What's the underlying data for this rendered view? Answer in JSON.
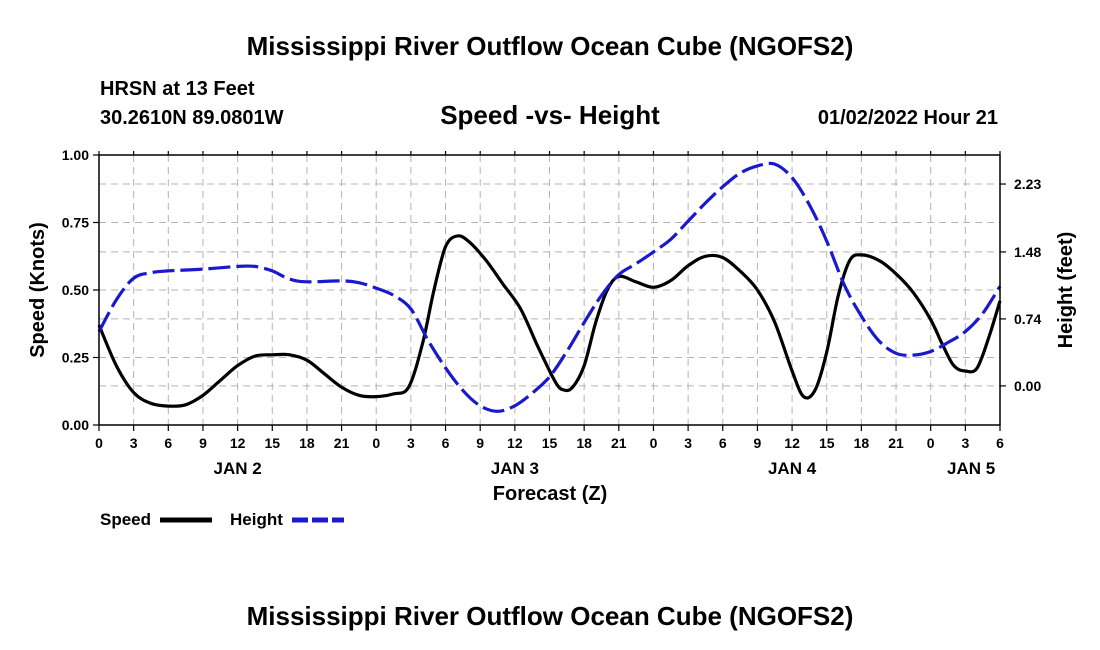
{
  "header": {
    "title": "Mississippi River Outflow Ocean Cube (NGOFS2)",
    "station": "HRSN at 13 Feet",
    "location": "30.2610N  89.0801W",
    "datetime": "01/02/2022 Hour 21",
    "footer_title": "Mississippi River Outflow Ocean Cube (NGOFS2)"
  },
  "colors": {
    "speed": "#000000",
    "height": "#1a1acc",
    "grid": "#b4b4b4"
  },
  "chart_data": {
    "type": "line",
    "title": "Speed -vs- Height",
    "xlabel": "Forecast (Z)",
    "ylabel": "Speed (Knots)",
    "y2label": "Height (feet)",
    "xlim": [
      0,
      78
    ],
    "ylim": [
      0,
      1.0
    ],
    "y2lim": [
      -0.4318,
      2.5507
    ],
    "x_ticks": [
      0,
      3,
      6,
      9,
      12,
      15,
      18,
      21,
      24,
      27,
      30,
      33,
      36,
      39,
      42,
      45,
      48,
      51,
      54,
      57,
      60,
      63,
      66,
      69,
      72,
      75,
      78
    ],
    "x_tick_labels": [
      "0",
      "3",
      "6",
      "9",
      "12",
      "15",
      "18",
      "21",
      "0",
      "3",
      "6",
      "9",
      "12",
      "15",
      "18",
      "21",
      "0",
      "3",
      "6",
      "9",
      "12",
      "15",
      "18",
      "21",
      "0",
      "3",
      "6"
    ],
    "y_ticks": [
      0,
      0.25,
      0.5,
      0.75,
      1.0
    ],
    "y_tick_labels": [
      "0.00",
      "0.25",
      "0.50",
      "0.75",
      "1.00"
    ],
    "y2_ticks": [
      0.0,
      0.74,
      1.48,
      2.23
    ],
    "y2_tick_labels": [
      "0.00",
      "0.74",
      "1.48",
      "2.23"
    ],
    "date_labels": [
      {
        "label": "JAN 2",
        "x": 12
      },
      {
        "label": "JAN 3",
        "x": 36
      },
      {
        "label": "JAN 4",
        "x": 60
      },
      {
        "label": "JAN 5",
        "x": 75.5
      }
    ],
    "grid": true,
    "legend": [
      {
        "name": "Speed",
        "style": "solid"
      },
      {
        "name": "Height",
        "style": "dashed"
      }
    ],
    "series": [
      {
        "name": "Speed",
        "axis": "left",
        "points": [
          [
            0,
            0.37
          ],
          [
            1.5,
            0.22
          ],
          [
            3,
            0.12
          ],
          [
            4.5,
            0.08
          ],
          [
            6,
            0.07
          ],
          [
            7.5,
            0.075
          ],
          [
            9,
            0.11
          ],
          [
            10.5,
            0.165
          ],
          [
            12,
            0.22
          ],
          [
            13.5,
            0.255
          ],
          [
            15,
            0.26
          ],
          [
            16.5,
            0.26
          ],
          [
            18,
            0.24
          ],
          [
            19.5,
            0.19
          ],
          [
            21,
            0.14
          ],
          [
            22.5,
            0.11
          ],
          [
            24,
            0.105
          ],
          [
            25.5,
            0.115
          ],
          [
            26.8,
            0.14
          ],
          [
            28,
            0.3
          ],
          [
            29,
            0.5
          ],
          [
            30,
            0.66
          ],
          [
            31,
            0.7
          ],
          [
            32,
            0.68
          ],
          [
            33.5,
            0.61
          ],
          [
            35,
            0.52
          ],
          [
            36.5,
            0.43
          ],
          [
            38,
            0.29
          ],
          [
            39.5,
            0.16
          ],
          [
            40.2,
            0.13
          ],
          [
            41,
            0.14
          ],
          [
            42,
            0.22
          ],
          [
            43,
            0.38
          ],
          [
            44,
            0.5
          ],
          [
            45,
            0.55
          ],
          [
            46.5,
            0.53
          ],
          [
            48,
            0.51
          ],
          [
            49.5,
            0.535
          ],
          [
            51,
            0.59
          ],
          [
            52.5,
            0.625
          ],
          [
            54,
            0.62
          ],
          [
            55.5,
            0.57
          ],
          [
            57,
            0.5
          ],
          [
            58.5,
            0.38
          ],
          [
            60,
            0.2
          ],
          [
            61,
            0.105
          ],
          [
            62,
            0.13
          ],
          [
            63,
            0.27
          ],
          [
            64,
            0.48
          ],
          [
            65,
            0.61
          ],
          [
            66,
            0.63
          ],
          [
            67.5,
            0.61
          ],
          [
            69,
            0.56
          ],
          [
            70.5,
            0.49
          ],
          [
            72,
            0.39
          ],
          [
            73,
            0.3
          ],
          [
            74,
            0.22
          ],
          [
            75,
            0.2
          ],
          [
            76,
            0.21
          ],
          [
            77,
            0.32
          ],
          [
            78,
            0.46
          ]
        ]
      },
      {
        "name": "Height",
        "axis": "right",
        "points": [
          [
            0,
            0.6
          ],
          [
            1.5,
            0.95
          ],
          [
            3,
            1.19
          ],
          [
            4.5,
            1.25
          ],
          [
            6,
            1.27
          ],
          [
            9,
            1.29
          ],
          [
            12,
            1.32
          ],
          [
            13.5,
            1.32
          ],
          [
            15,
            1.27
          ],
          [
            16.5,
            1.18
          ],
          [
            18,
            1.15
          ],
          [
            21,
            1.16
          ],
          [
            22.5,
            1.14
          ],
          [
            24,
            1.08
          ],
          [
            25.5,
            1.0
          ],
          [
            27,
            0.85
          ],
          [
            28.5,
            0.5
          ],
          [
            30,
            0.2
          ],
          [
            31.5,
            -0.05
          ],
          [
            33,
            -0.22
          ],
          [
            34.5,
            -0.28
          ],
          [
            36,
            -0.22
          ],
          [
            37.5,
            -0.08
          ],
          [
            39,
            0.1
          ],
          [
            40.5,
            0.38
          ],
          [
            42,
            0.7
          ],
          [
            43.5,
            1.0
          ],
          [
            45,
            1.23
          ],
          [
            46.5,
            1.35
          ],
          [
            48,
            1.48
          ],
          [
            49.5,
            1.62
          ],
          [
            51,
            1.82
          ],
          [
            52.5,
            2.02
          ],
          [
            54,
            2.2
          ],
          [
            55.5,
            2.35
          ],
          [
            57,
            2.43
          ],
          [
            58.5,
            2.45
          ],
          [
            60,
            2.3
          ],
          [
            61.5,
            2.0
          ],
          [
            63,
            1.6
          ],
          [
            64.5,
            1.12
          ],
          [
            66,
            0.77
          ],
          [
            67.5,
            0.5
          ],
          [
            69,
            0.36
          ],
          [
            70.5,
            0.34
          ],
          [
            72,
            0.38
          ],
          [
            73.5,
            0.48
          ],
          [
            75,
            0.6
          ],
          [
            76.5,
            0.8
          ],
          [
            78,
            1.1
          ]
        ]
      }
    ]
  }
}
